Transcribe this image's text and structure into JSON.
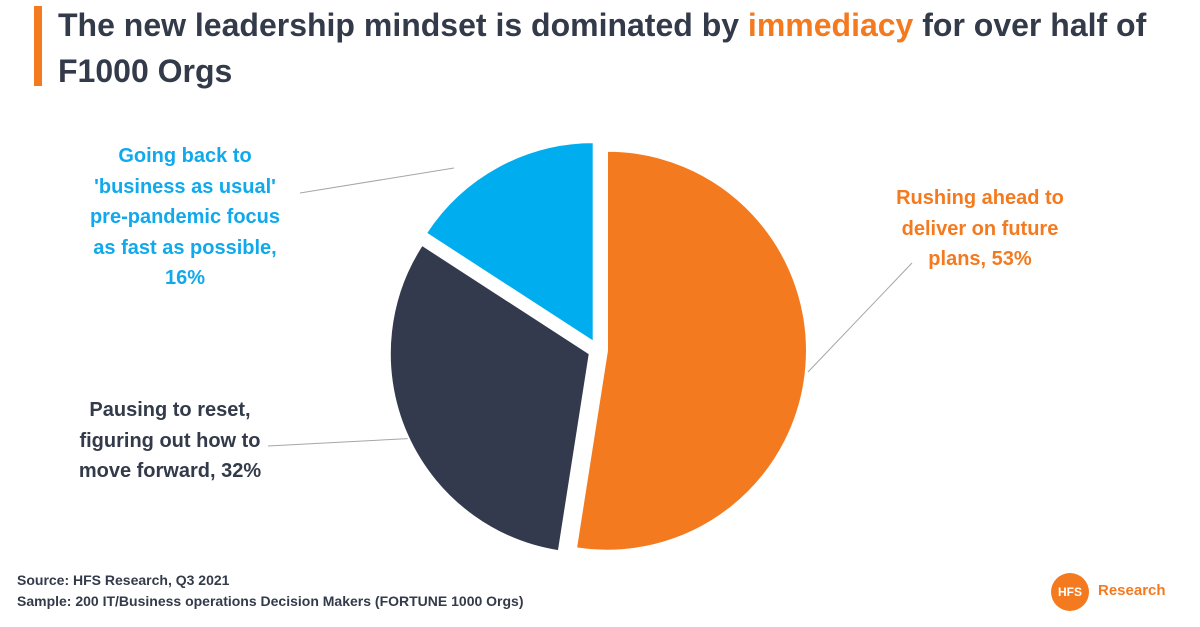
{
  "header": {
    "title_before": "The new leadership mindset is dominated by ",
    "title_highlight": "immediacy",
    "title_after": " for over half of F1000 Orgs"
  },
  "chart_data": {
    "type": "pie",
    "slices": [
      {
        "label_lines": [
          "Rushing ahead to",
          "deliver on future",
          "plans, 53%"
        ],
        "value": 53,
        "color": "#F47A20"
      },
      {
        "label_lines": [
          "Pausing to reset,",
          "figuring out how to",
          "move forward, 32%"
        ],
        "value": 32,
        "color": "#333A4D"
      },
      {
        "label_lines": [
          "Going back to",
          "'business as usual'",
          "pre-pandemic focus",
          "as fast as possible,",
          "16%"
        ],
        "value": 16,
        "color": "#00AEEF"
      }
    ]
  },
  "footer": {
    "source": "Source:  HFS Research, Q3 2021",
    "sample": "Sample: 200 IT/Business operations Decision Makers (FORTUNE 1000 Orgs)"
  },
  "logo": {
    "mark": "HFS",
    "text": "Research"
  }
}
